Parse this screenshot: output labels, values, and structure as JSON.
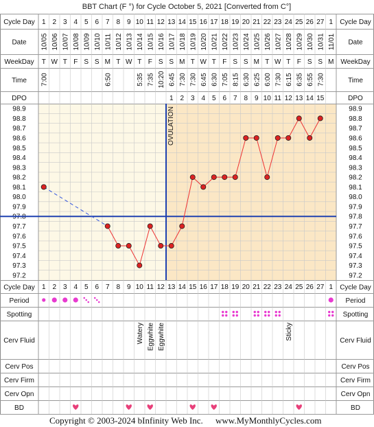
{
  "chart_data": {
    "type": "line",
    "title": "BBT Chart (F °) for Cycle October 5, 2021  [Converted from C°]",
    "row_labels": {
      "cycle_day": "Cycle Day",
      "date": "Date",
      "weekday": "WeekDay",
      "time": "Time",
      "dpo": "DPO",
      "period": "Period",
      "spotting": "Spotting",
      "cerv_fluid": "Cerv Fluid",
      "cerv_pos": "Cerv Pos",
      "cerv_firm": "Cerv Firm",
      "cerv_opn": "Cerv Opn",
      "bd": "BD"
    },
    "cycle_days": [
      "1",
      "2",
      "3",
      "4",
      "5",
      "6",
      "7",
      "8",
      "9",
      "10",
      "11",
      "12",
      "13",
      "14",
      "15",
      "16",
      "17",
      "18",
      "19",
      "20",
      "21",
      "22",
      "23",
      "24",
      "25",
      "26",
      "27",
      "1"
    ],
    "dates": [
      "10/05",
      "10/06",
      "10/07",
      "10/08",
      "10/09",
      "10/10",
      "10/11",
      "10/12",
      "10/13",
      "10/14",
      "10/15",
      "10/16",
      "10/17",
      "10/18",
      "10/19",
      "10/20",
      "10/21",
      "10/22",
      "10/23",
      "10/24",
      "10/25",
      "10/26",
      "10/27",
      "10/28",
      "10/29",
      "10/30",
      "10/31",
      "11/01"
    ],
    "weekdays": [
      "T",
      "W",
      "T",
      "F",
      "S",
      "S",
      "M",
      "T",
      "W",
      "T",
      "F",
      "S",
      "S",
      "M",
      "T",
      "W",
      "T",
      "F",
      "S",
      "S",
      "M",
      "T",
      "W",
      "T",
      "F",
      "S",
      "S",
      "M"
    ],
    "times": [
      "7:00",
      "",
      "",
      "",
      "",
      "",
      "6:50",
      "",
      "",
      "5:35",
      "7:35",
      "10:20",
      "6:45",
      "7:30",
      "7:30",
      "6:45",
      "6:30",
      "7:05",
      "8:15",
      "6:30",
      "6:25",
      "6:00",
      "7:30",
      "6:15",
      "6:35",
      "6:55",
      "7:30",
      ""
    ],
    "dpo": [
      "",
      "",
      "",
      "",
      "",
      "",
      "",
      "",
      "",
      "",
      "",
      "",
      "1",
      "2",
      "3",
      "4",
      "5",
      "6",
      "7",
      "8",
      "9",
      "10",
      "11",
      "12",
      "13",
      "14",
      "15",
      ""
    ],
    "y_ticks": [
      "98.9",
      "98.8",
      "98.7",
      "98.6",
      "98.5",
      "98.4",
      "98.3",
      "98.2",
      "98.1",
      "98.0",
      "97.9",
      "97.8",
      "97.7",
      "97.6",
      "97.5",
      "97.4",
      "97.3",
      "97.2"
    ],
    "ylim": [
      97.2,
      98.9
    ],
    "temps": [
      98.1,
      null,
      null,
      null,
      null,
      null,
      97.7,
      97.5,
      97.5,
      97.3,
      97.7,
      97.5,
      97.5,
      97.7,
      98.2,
      98.1,
      98.2,
      98.2,
      98.2,
      98.6,
      98.6,
      98.2,
      98.6,
      98.6,
      98.8,
      98.6,
      98.8,
      null
    ],
    "coverline": 97.8,
    "ovulation_label": "OVULATION",
    "ovulation_after_day_index": 11,
    "period": [
      2,
      2,
      2,
      2,
      3,
      3,
      0,
      0,
      0,
      0,
      0,
      0,
      0,
      0,
      0,
      0,
      0,
      0,
      0,
      0,
      0,
      0,
      0,
      0,
      0,
      0,
      0,
      2
    ],
    "spotting_days": [
      17,
      18,
      20,
      21,
      22,
      27
    ],
    "cerv_fluid": [
      "",
      "",
      "",
      "",
      "",
      "",
      "",
      "",
      "",
      "Watery",
      "Eggwhite",
      "Eggwhite",
      "",
      "",
      "",
      "",
      "",
      "",
      "",
      "",
      "",
      "",
      "",
      "Sticky",
      "",
      "",
      "",
      ""
    ],
    "bd_days": [
      3,
      8,
      10,
      14,
      16,
      24
    ],
    "colors": {
      "pre_bg": "#fdf8e6",
      "post_bg": "#fbe7c5",
      "grid": "#c8c8c8",
      "line": "#ee3333",
      "point_fill": "#dd2222",
      "coverline": "#1e40b0",
      "period": "#e83ad0",
      "spotting": "#e83ad0",
      "bd": "#e8407a"
    }
  },
  "footer": {
    "copyright": "Copyright © 2003-2024 bInfinity Web Inc.",
    "site": "www.MyMonthlyCycles.com"
  }
}
